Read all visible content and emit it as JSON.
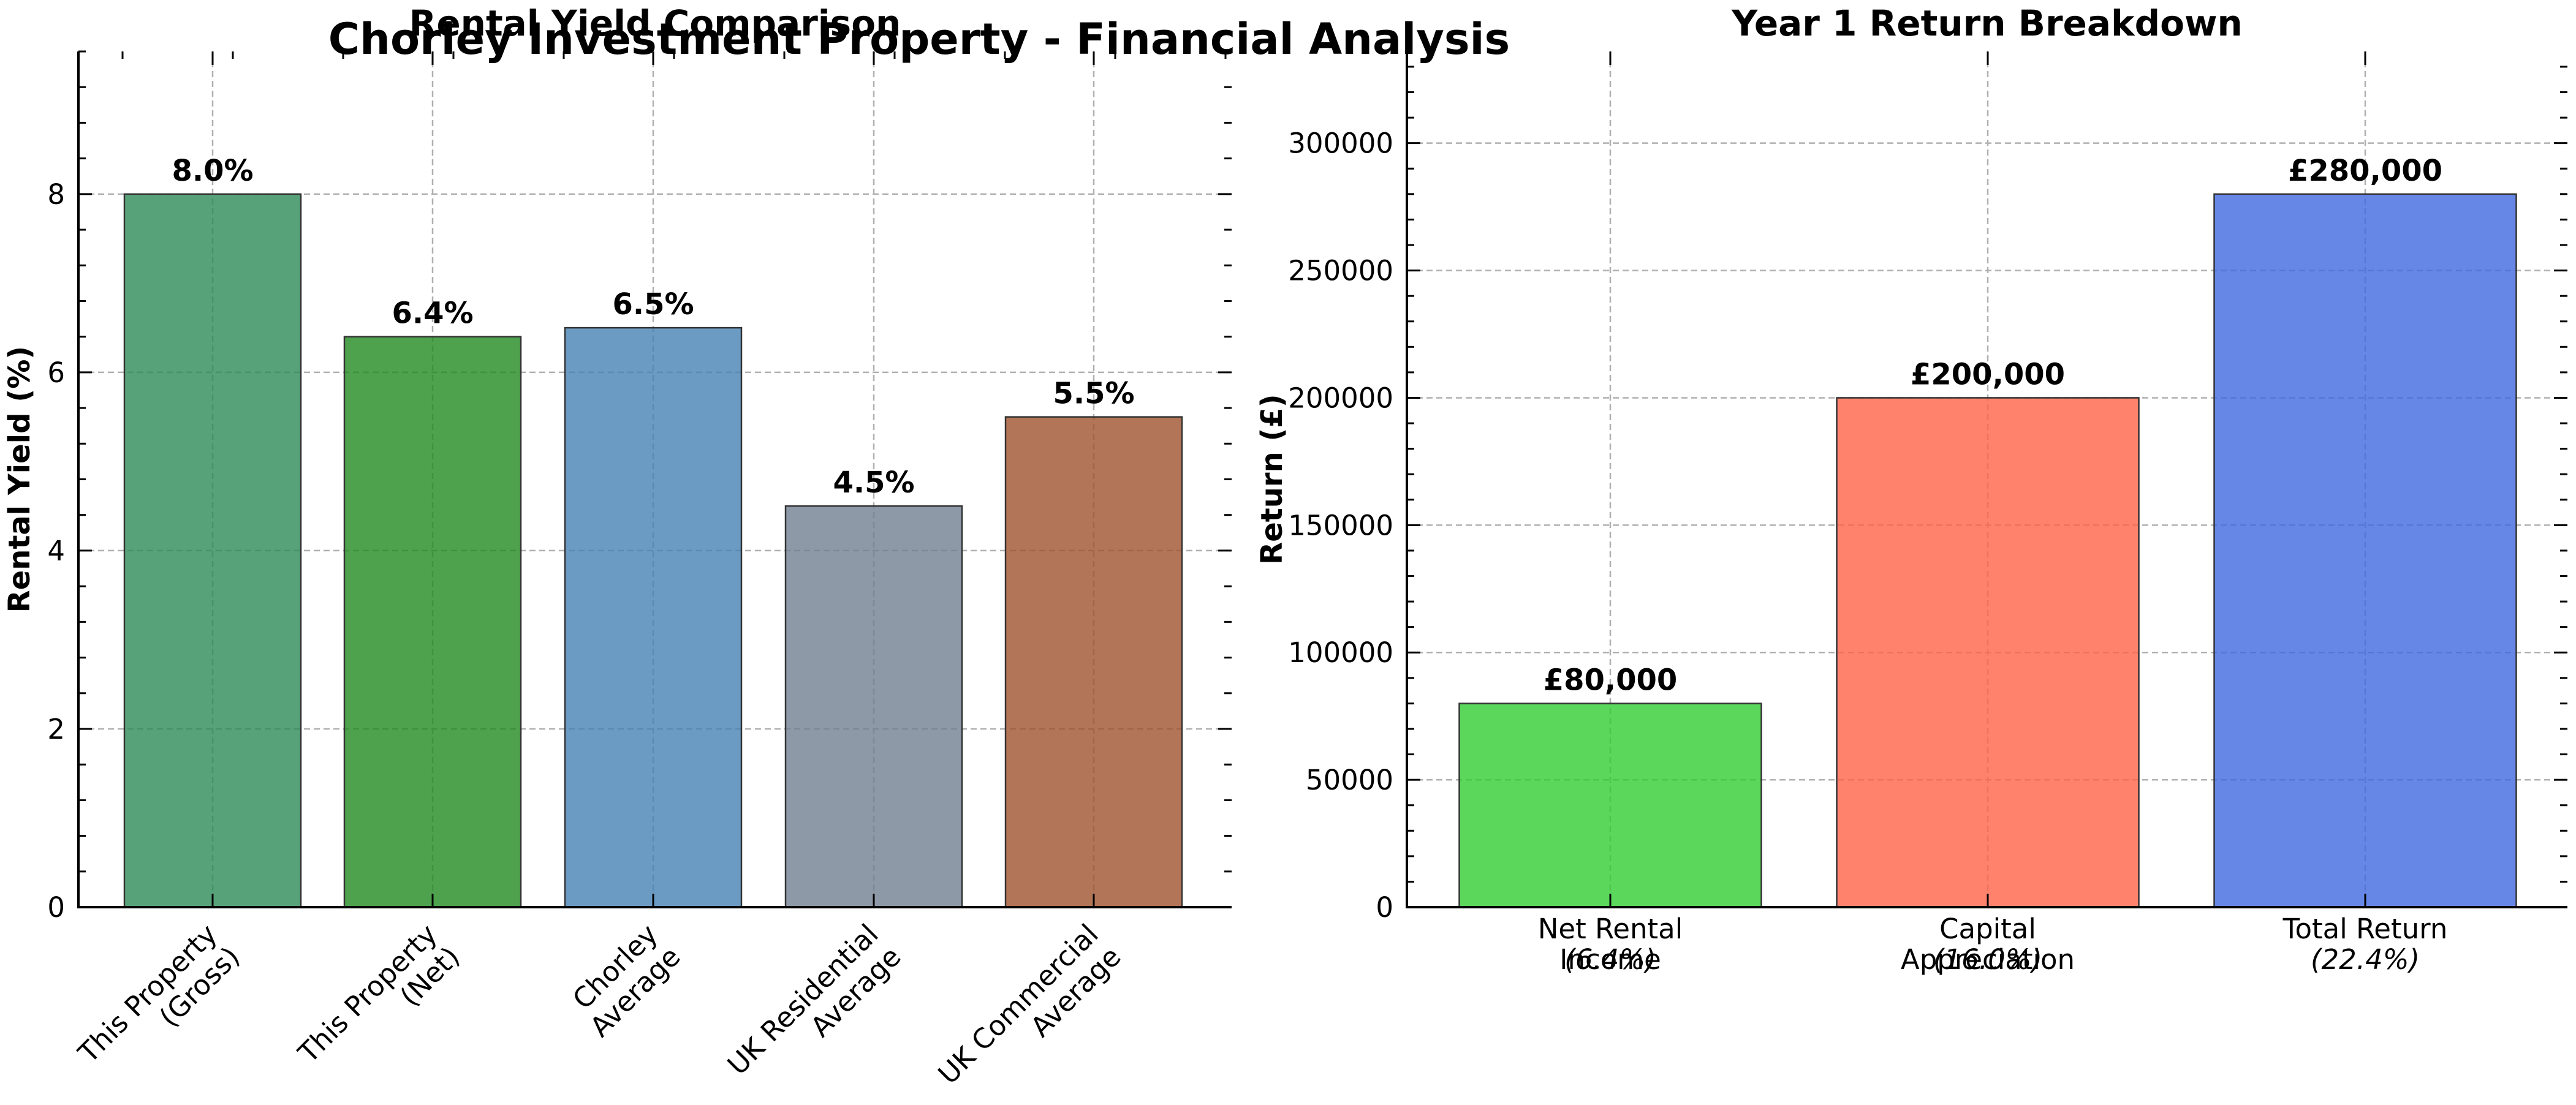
{
  "title": "Chorley Investment Property - Financial Analysis",
  "chart_data": [
    {
      "type": "bar",
      "title": "Rental Yield Comparison",
      "xlabel": "",
      "ylabel": "Rental Yield (%)",
      "categories": [
        "This Property\n(Gross)",
        "This Property\n(Net)",
        "Chorley\nAverage",
        "UK Residential\nAverage",
        "UK Commercial\nAverage"
      ],
      "values": [
        8.0,
        6.4,
        6.5,
        4.5,
        5.5
      ],
      "data_labels": [
        "8.0%",
        "6.4%",
        "6.5%",
        "4.5%",
        "5.5%"
      ],
      "colors": [
        "#2e8b57",
        "#228b22",
        "#4682b4",
        "#708090",
        "#a0522d"
      ],
      "bar_alpha": 0.8,
      "ylim": [
        0,
        9.6
      ],
      "yticks": [
        0,
        2,
        4,
        6,
        8
      ],
      "ytick_labels": [
        "0",
        "2",
        "4",
        "6",
        "8"
      ],
      "grid": true,
      "xtick_rotation": 45
    },
    {
      "type": "bar",
      "title": "Year 1 Return Breakdown",
      "xlabel": "",
      "ylabel": "Return (£)",
      "categories": [
        "Net Rental\nIncome",
        "Capital\nAppreciation",
        "Total Return"
      ],
      "subtitles": [
        "(6.4%)",
        "(16.0%)",
        "(22.4%)"
      ],
      "values": [
        80000,
        200000,
        280000
      ],
      "data_labels": [
        "£80,000",
        "£200,000",
        "£280,000"
      ],
      "colors": [
        "#32cd32",
        "#ff6347",
        "#4169e1"
      ],
      "bar_alpha": 0.8,
      "ylim": [
        0,
        336000
      ],
      "yticks": [
        0,
        50000,
        100000,
        150000,
        200000,
        250000,
        300000
      ],
      "ytick_labels": [
        "0",
        "50000",
        "100000",
        "150000",
        "200000",
        "250000",
        "300000"
      ],
      "grid": true,
      "xtick_rotation": 0
    }
  ]
}
